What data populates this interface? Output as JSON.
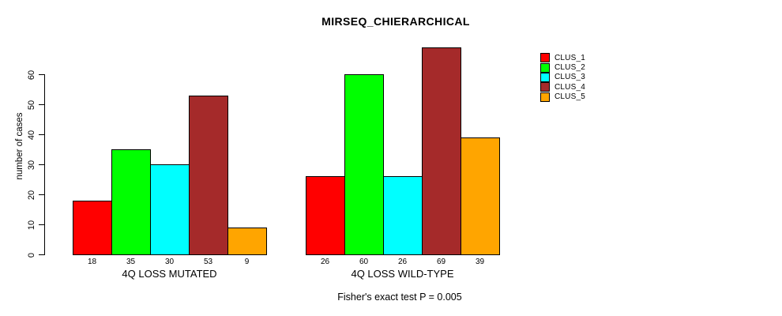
{
  "chart_data": {
    "type": "bar",
    "title": "MIRSEQ_CHIERARCHICAL",
    "ylabel": "number of cases",
    "xlabel": "",
    "footnote": "Fisher's exact test P = 0.005",
    "yticks": [
      0,
      10,
      20,
      30,
      40,
      50,
      60
    ],
    "ylim": [
      0,
      69
    ],
    "grid": false,
    "legend_position": "right",
    "bar_border_color": "#000000",
    "series": [
      {
        "name": "CLUS_1",
        "color": "#FF0000"
      },
      {
        "name": "CLUS_2",
        "color": "#00FF00"
      },
      {
        "name": "CLUS_3",
        "color": "#00FFFF"
      },
      {
        "name": "CLUS_4",
        "color": "#A52A2A"
      },
      {
        "name": "CLUS_5",
        "color": "#FFA500"
      }
    ],
    "groups": [
      {
        "label": "4Q LOSS MUTATED",
        "values": [
          18,
          35,
          30,
          53,
          9
        ]
      },
      {
        "label": "4Q LOSS WILD-TYPE",
        "values": [
          26,
          60,
          26,
          69,
          39
        ]
      }
    ]
  }
}
